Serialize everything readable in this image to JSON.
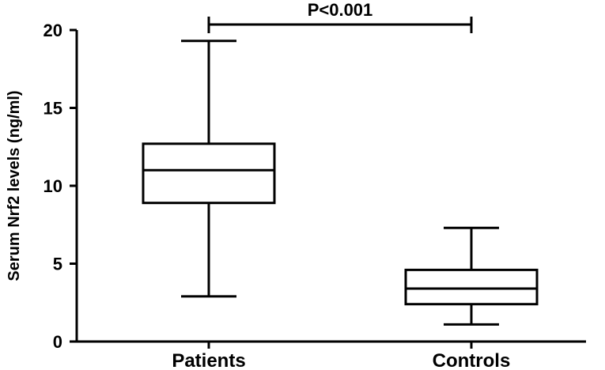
{
  "chart_data": {
    "type": "box",
    "ylabel": "Serum  Nrf2 levels (ng/ml)",
    "xlabel": "",
    "ylim": [
      0,
      20
    ],
    "yticks": [
      0,
      5,
      10,
      15,
      20
    ],
    "ytick_labels": [
      "0",
      "5",
      "10",
      "15",
      "20"
    ],
    "categories": [
      "Patients",
      "Controls"
    ],
    "boxes": [
      {
        "category": "Patients",
        "min": 2.9,
        "q1": 8.9,
        "median": 11.0,
        "q3": 12.7,
        "max": 19.3
      },
      {
        "category": "Controls",
        "min": 1.1,
        "q1": 2.4,
        "median": 3.4,
        "q3": 4.6,
        "max": 7.3
      }
    ],
    "annotation": {
      "text": "P<0.001",
      "from": "Patients",
      "to": "Controls"
    },
    "grid": false,
    "legend": "none"
  }
}
